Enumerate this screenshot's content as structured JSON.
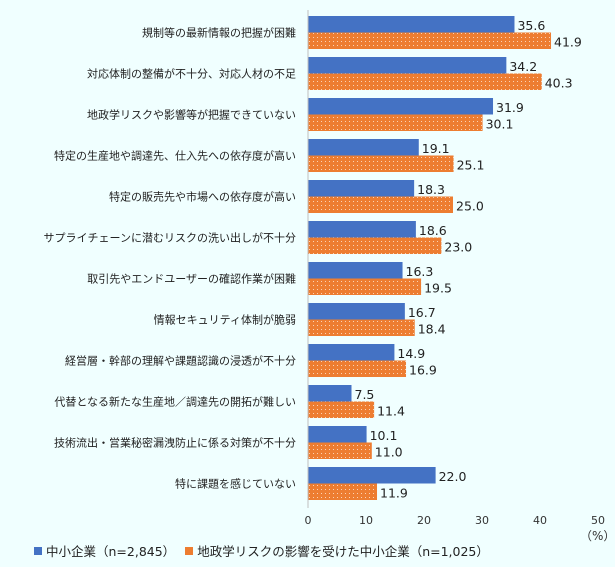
{
  "chart_data": {
    "type": "bar",
    "orientation": "horizontal",
    "categories": [
      "規制等の最新情報の把握が困難",
      "対応体制の整備が不十分、対応人材の不足",
      "地政学リスクや影響等が把握できていない",
      "特定の生産地や調達先、仕入先への依存度が高い",
      "特定の販売先や市場への依存度が高い",
      "サプライチェーンに潜むリスクの洗い出しが不十分",
      "取引先やエンドユーザーの確認作業が困難",
      "情報セキュリティ体制が脆弱",
      "経営層・幹部の理解や課題認識の浸透が不十分",
      "代替となる新たな生産地／調達先の開拓が難しい",
      "技術流出・営業秘密漏洩防止に係る対策が不十分",
      "特に課題を感じていない"
    ],
    "series": [
      {
        "name": "中小企業（n=2,845）",
        "color": "#4472C4",
        "pattern": "solid",
        "values": [
          35.6,
          34.2,
          31.9,
          19.1,
          18.3,
          18.6,
          16.3,
          16.7,
          14.9,
          7.5,
          10.1,
          22.0
        ]
      },
      {
        "name": "地政学リスクの影響を受けた中小企業（n=1,025）",
        "color": "#ED7D31",
        "pattern": "dotted",
        "values": [
          41.9,
          40.3,
          30.1,
          25.1,
          25.0,
          23.0,
          19.5,
          18.4,
          16.9,
          11.4,
          11.0,
          11.9
        ]
      }
    ],
    "xlim": [
      0,
      50
    ],
    "xticks": [
      "0",
      "10",
      "20",
      "30",
      "40",
      "50"
    ],
    "xunit": "（%）",
    "grid": false,
    "legend_position": "bottom-left"
  }
}
